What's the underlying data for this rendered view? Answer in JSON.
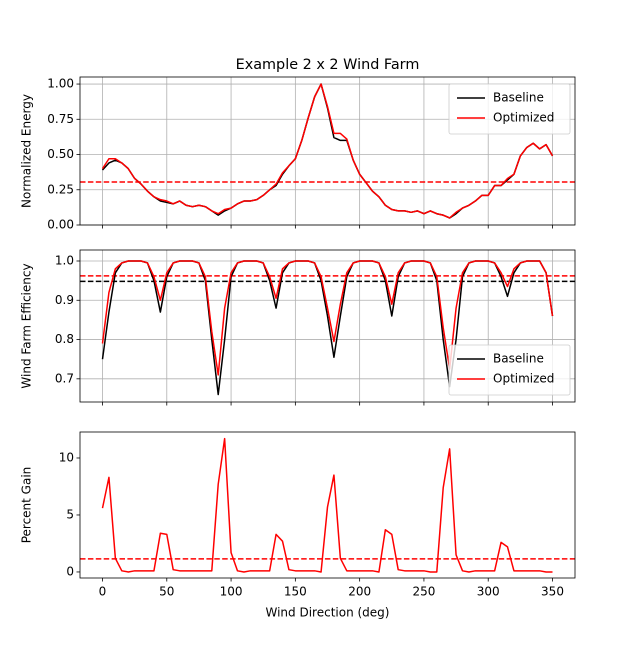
{
  "chart_data": [
    {
      "type": "line",
      "title": "Example 2 x 2 Wind Farm",
      "ylabel": "Normalized Energy",
      "x": [
        0,
        5,
        10,
        15,
        20,
        25,
        30,
        35,
        40,
        45,
        50,
        55,
        60,
        65,
        70,
        75,
        80,
        85,
        90,
        95,
        100,
        105,
        110,
        115,
        120,
        125,
        130,
        135,
        140,
        145,
        150,
        155,
        160,
        165,
        170,
        175,
        180,
        185,
        190,
        195,
        200,
        205,
        210,
        215,
        220,
        225,
        230,
        235,
        240,
        245,
        250,
        255,
        260,
        265,
        270,
        275,
        280,
        285,
        290,
        295,
        300,
        305,
        310,
        315,
        320,
        325,
        330,
        335,
        340,
        345,
        350
      ],
      "series": [
        {
          "name": "Baseline",
          "color": "#000000",
          "values": [
            0.39,
            0.44,
            0.46,
            0.44,
            0.4,
            0.33,
            0.29,
            0.24,
            0.2,
            0.17,
            0.16,
            0.15,
            0.17,
            0.14,
            0.13,
            0.14,
            0.13,
            0.1,
            0.07,
            0.1,
            0.12,
            0.15,
            0.17,
            0.17,
            0.18,
            0.21,
            0.25,
            0.28,
            0.36,
            0.42,
            0.47,
            0.6,
            0.76,
            0.91,
            1.0,
            0.83,
            0.62,
            0.6,
            0.6,
            0.46,
            0.36,
            0.3,
            0.24,
            0.2,
            0.14,
            0.11,
            0.1,
            0.1,
            0.09,
            0.1,
            0.08,
            0.1,
            0.08,
            0.07,
            0.05,
            0.08,
            0.12,
            0.14,
            0.17,
            0.21,
            0.21,
            0.28,
            0.28,
            0.32,
            0.36,
            0.49,
            0.55,
            0.58,
            0.54,
            0.57,
            0.49
          ]
        },
        {
          "name": "Optimized",
          "color": "#ff0000",
          "values": [
            0.4,
            0.47,
            0.47,
            0.44,
            0.4,
            0.33,
            0.29,
            0.24,
            0.2,
            0.18,
            0.17,
            0.15,
            0.17,
            0.14,
            0.13,
            0.14,
            0.13,
            0.1,
            0.08,
            0.11,
            0.12,
            0.15,
            0.17,
            0.17,
            0.18,
            0.21,
            0.25,
            0.29,
            0.37,
            0.42,
            0.47,
            0.6,
            0.76,
            0.91,
            1.0,
            0.84,
            0.65,
            0.65,
            0.61,
            0.46,
            0.36,
            0.3,
            0.24,
            0.2,
            0.14,
            0.11,
            0.1,
            0.1,
            0.09,
            0.1,
            0.08,
            0.1,
            0.08,
            0.07,
            0.05,
            0.09,
            0.12,
            0.14,
            0.17,
            0.21,
            0.21,
            0.28,
            0.28,
            0.33,
            0.36,
            0.49,
            0.55,
            0.58,
            0.54,
            0.57,
            0.49
          ]
        }
      ],
      "reference_lines": [
        {
          "value": 0.305,
          "color": "#ff0000"
        }
      ],
      "xlim": [
        -17.5,
        367.5
      ],
      "xticks": [
        0,
        50,
        100,
        150,
        200,
        250,
        300,
        350
      ],
      "show_xtick_labels": false,
      "ylim": [
        0,
        1.05
      ],
      "yticks": [
        {
          "value": 0,
          "label": "0.00"
        },
        {
          "value": 0.25,
          "label": "0.25"
        },
        {
          "value": 0.5,
          "label": "0.50"
        },
        {
          "value": 0.75,
          "label": "0.75"
        },
        {
          "value": 1,
          "label": "1.00"
        }
      ],
      "grid": true,
      "legend": "upper right"
    },
    {
      "type": "line",
      "ylabel": "Wind Farm Efficiency",
      "x": [
        0,
        5,
        10,
        15,
        20,
        25,
        30,
        35,
        40,
        45,
        50,
        55,
        60,
        65,
        70,
        75,
        80,
        85,
        90,
        95,
        100,
        105,
        110,
        115,
        120,
        125,
        130,
        135,
        140,
        145,
        150,
        155,
        160,
        165,
        170,
        175,
        180,
        185,
        190,
        195,
        200,
        205,
        210,
        215,
        220,
        225,
        230,
        235,
        240,
        245,
        250,
        255,
        260,
        265,
        270,
        275,
        280,
        285,
        290,
        295,
        300,
        305,
        310,
        315,
        320,
        325,
        330,
        335,
        340,
        345,
        350
      ],
      "series": [
        {
          "name": "Baseline",
          "color": "#000000",
          "values": [
            0.75,
            0.87,
            0.97,
            0.995,
            1.0,
            1.0,
            1.0,
            0.995,
            0.95,
            0.87,
            0.96,
            0.995,
            1.0,
            1.0,
            1.0,
            0.995,
            0.95,
            0.8,
            0.66,
            0.8,
            0.96,
            0.995,
            1.0,
            1.0,
            1.0,
            0.995,
            0.95,
            0.88,
            0.97,
            0.995,
            1.0,
            1.0,
            1.0,
            0.995,
            0.95,
            0.86,
            0.755,
            0.86,
            0.96,
            0.995,
            1.0,
            1.0,
            1.0,
            0.995,
            0.95,
            0.86,
            0.96,
            0.995,
            1.0,
            1.0,
            1.0,
            0.995,
            0.95,
            0.8,
            0.68,
            0.8,
            0.96,
            0.995,
            1.0,
            1.0,
            1.0,
            0.995,
            0.96,
            0.91,
            0.97,
            0.995,
            1.0,
            1.0,
            1.0,
            0.97,
            0.86
          ]
        },
        {
          "name": "Optimized",
          "color": "#ff0000",
          "values": [
            0.79,
            0.92,
            0.98,
            0.995,
            1.0,
            1.0,
            1.0,
            0.995,
            0.96,
            0.9,
            0.97,
            0.995,
            1.0,
            1.0,
            1.0,
            0.995,
            0.96,
            0.82,
            0.71,
            0.88,
            0.97,
            0.995,
            1.0,
            1.0,
            1.0,
            0.995,
            0.96,
            0.905,
            0.98,
            0.995,
            1.0,
            1.0,
            1.0,
            0.995,
            0.96,
            0.88,
            0.795,
            0.89,
            0.97,
            0.995,
            1.0,
            1.0,
            1.0,
            0.995,
            0.96,
            0.89,
            0.97,
            0.995,
            1.0,
            1.0,
            1.0,
            0.995,
            0.96,
            0.83,
            0.725,
            0.88,
            0.97,
            0.995,
            1.0,
            1.0,
            1.0,
            0.995,
            0.97,
            0.935,
            0.98,
            0.995,
            1.0,
            1.0,
            1.0,
            0.97,
            0.86
          ]
        }
      ],
      "reference_lines": [
        {
          "value": 0.948,
          "color": "#000000"
        },
        {
          "value": 0.962,
          "color": "#ff0000"
        }
      ],
      "xlim": [
        -17.5,
        367.5
      ],
      "xticks": [
        0,
        50,
        100,
        150,
        200,
        250,
        300,
        350
      ],
      "show_xtick_labels": false,
      "ylim": [
        0.641,
        1.028
      ],
      "yticks": [
        0.7,
        0.8,
        0.9,
        {
          "value": 1,
          "label": "1.0"
        }
      ],
      "grid": true,
      "legend": "lower right"
    },
    {
      "type": "line",
      "ylabel": "Percent Gain",
      "xlabel": "Wind Direction (deg)",
      "x": [
        0,
        5,
        10,
        15,
        20,
        25,
        30,
        35,
        40,
        45,
        50,
        55,
        60,
        65,
        70,
        75,
        80,
        85,
        90,
        95,
        100,
        105,
        110,
        115,
        120,
        125,
        130,
        135,
        140,
        145,
        150,
        155,
        160,
        165,
        170,
        175,
        180,
        185,
        190,
        195,
        200,
        205,
        210,
        215,
        220,
        225,
        230,
        235,
        240,
        245,
        250,
        255,
        260,
        265,
        270,
        275,
        280,
        285,
        290,
        295,
        300,
        305,
        310,
        315,
        320,
        325,
        330,
        335,
        340,
        345,
        350
      ],
      "series": [
        {
          "color": "#ff0000",
          "values": [
            5.6,
            8.3,
            1.2,
            0.1,
            0.0,
            0.1,
            0.1,
            0.1,
            0.1,
            3.4,
            3.3,
            0.2,
            0.1,
            0.1,
            0.1,
            0.1,
            0.1,
            0.1,
            7.7,
            11.7,
            1.7,
            0.1,
            0.0,
            0.1,
            0.1,
            0.1,
            0.1,
            3.3,
            2.7,
            0.2,
            0.1,
            0.1,
            0.1,
            0.1,
            0.0,
            5.7,
            8.5,
            1.2,
            0.1,
            0.1,
            0.1,
            0.1,
            0.1,
            0.0,
            3.7,
            3.3,
            0.2,
            0.1,
            0.1,
            0.1,
            0.1,
            0.0,
            0.0,
            7.4,
            10.8,
            1.5,
            0.1,
            0.0,
            0.1,
            0.1,
            0.1,
            0.1,
            2.6,
            2.2,
            0.1,
            0.1,
            0.1,
            0.1,
            0.1,
            0.0,
            0.0
          ]
        }
      ],
      "reference_lines": [
        {
          "value": 1.15,
          "color": "#ff0000"
        }
      ],
      "xlim": [
        -17.5,
        367.5
      ],
      "xticks": [
        0,
        50,
        100,
        150,
        200,
        250,
        300,
        350
      ],
      "show_xtick_labels": true,
      "ylim": [
        -0.53,
        12.28
      ],
      "yticks": [
        0,
        5,
        10
      ],
      "grid": false
    }
  ]
}
